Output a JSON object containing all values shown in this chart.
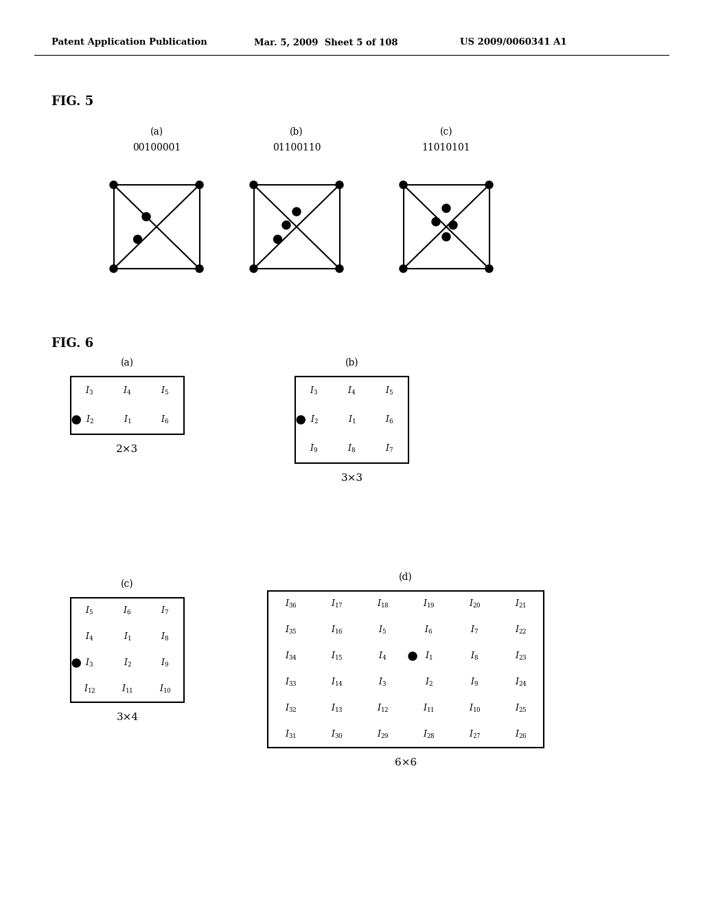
{
  "header_left": "Patent Application Publication",
  "header_mid": "Mar. 5, 2009  Sheet 5 of 108",
  "header_right": "US 2009/0060341 A1",
  "fig5_label": "FIG. 5",
  "fig5_subs": [
    "(a)",
    "(b)",
    "(c)"
  ],
  "fig5_codes": [
    "00100001",
    "01100110",
    "11010101"
  ],
  "fig6_label": "FIG. 6",
  "fig6_subs": [
    "(a)",
    "(b)",
    "(c)",
    "(d)"
  ],
  "fig6_dims": [
    "2×3",
    "3×3",
    "3×4",
    "6×6"
  ],
  "fig6a_labels": [
    [
      "I_3",
      "I_4",
      "I_5"
    ],
    [
      "I_2",
      "I_1",
      "I_6"
    ]
  ],
  "fig6a_dot": [
    1,
    0
  ],
  "fig6b_labels": [
    [
      "I_3",
      "I_4",
      "I_5"
    ],
    [
      "I_2",
      "I_1",
      "I_6"
    ],
    [
      "I_9",
      "I_8",
      "I_7"
    ]
  ],
  "fig6b_dot": [
    1,
    0
  ],
  "fig6c_labels": [
    [
      "I_5",
      "I_6",
      "I_7"
    ],
    [
      "I_4",
      "I_1",
      "I_8"
    ],
    [
      "I_3",
      "I_2",
      "I_9"
    ],
    [
      "I_12",
      "I_11",
      "I_10"
    ]
  ],
  "fig6c_dot": [
    2,
    0
  ],
  "fig6d_labels": [
    [
      "I_36",
      "I_17",
      "I_18",
      "I_19",
      "I_20",
      "I_21"
    ],
    [
      "I_35",
      "I_16",
      "I_5",
      "I_6",
      "I_7",
      "I_22"
    ],
    [
      "I_34",
      "I_15",
      "I_4",
      "I_1",
      "I_8",
      "I_23"
    ],
    [
      "I_33",
      "I_14",
      "I_3",
      "I_2",
      "I_9",
      "I_24"
    ],
    [
      "I_32",
      "I_13",
      "I_12",
      "I_11",
      "I_10",
      "I_25"
    ],
    [
      "I_31",
      "I_30",
      "I_29",
      "I_28",
      "I_27",
      "I_26"
    ]
  ],
  "fig6d_dot": [
    2,
    3
  ]
}
